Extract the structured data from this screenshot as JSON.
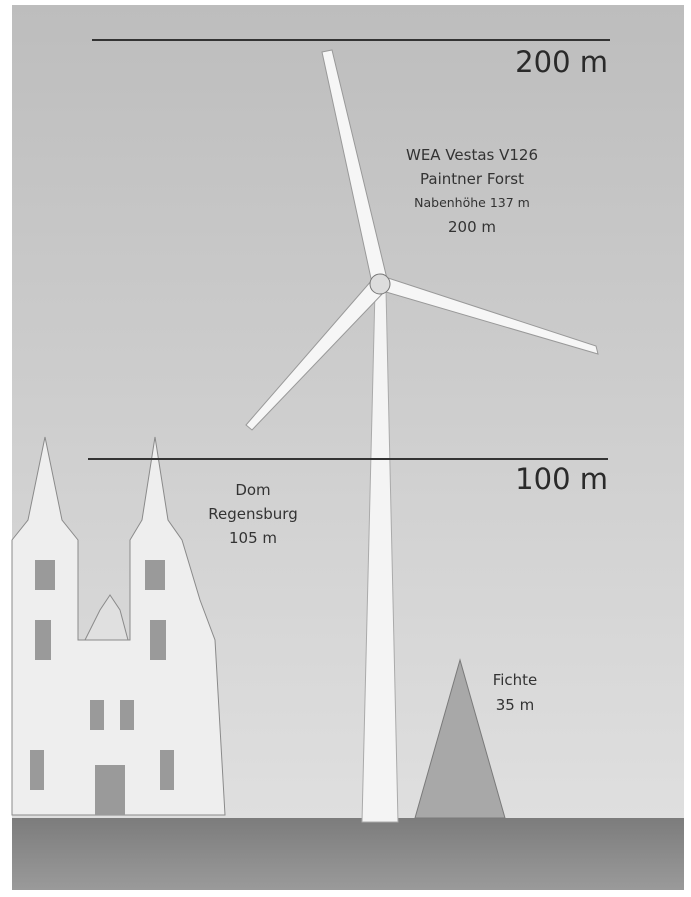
{
  "reference_lines": [
    {
      "label": "200 m"
    },
    {
      "label": "100 m"
    }
  ],
  "turbine": {
    "lines": [
      "WEA Vestas V126",
      "Paintner Forst",
      "Nabenhöhe 137 m",
      "200 m"
    ]
  },
  "cathedral": {
    "lines": [
      "Dom",
      "Regensburg",
      "105 m"
    ]
  },
  "tree": {
    "lines": [
      "Fichte",
      "35 m"
    ]
  }
}
